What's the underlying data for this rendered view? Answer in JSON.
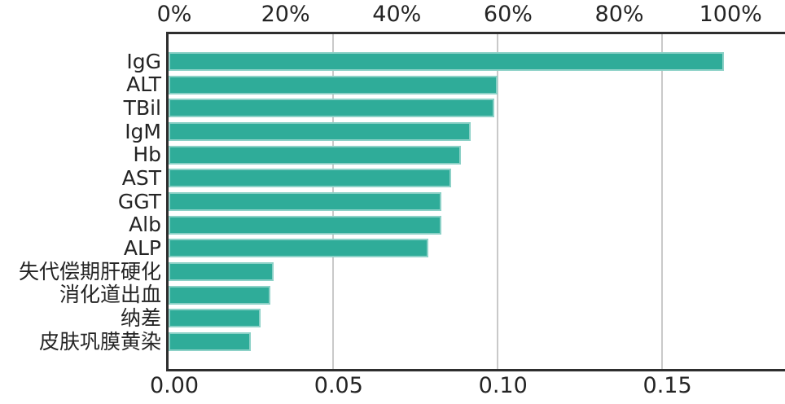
{
  "chart_data": {
    "type": "bar",
    "orientation": "horizontal",
    "categories": [
      "IgG",
      "ALT",
      "TBil",
      "IgM",
      "Hb",
      "AST",
      "GGT",
      "Alb",
      "ALP",
      "失代偿期肝硬化",
      "消化道出血",
      "纳差",
      "皮肤巩膜黄染"
    ],
    "values": [
      0.169,
      0.1,
      0.099,
      0.092,
      0.089,
      0.086,
      0.083,
      0.083,
      0.079,
      0.032,
      0.031,
      0.028,
      0.025
    ],
    "values_as_top_axis_percent": [
      100,
      59,
      58,
      54,
      53,
      51,
      49,
      49,
      47,
      19,
      18,
      17,
      15
    ],
    "top_axis": {
      "unit": "percent",
      "tick_labels": [
        "0%",
        "20%",
        "40%",
        "60%",
        "80%",
        "100%"
      ],
      "tick_values": [
        0,
        20,
        40,
        60,
        80,
        100
      ],
      "min": 0,
      "max": 110.8
    },
    "bottom_axis": {
      "unit": "proportion",
      "tick_labels": [
        "0.00",
        "0.05",
        "0.10",
        "0.15"
      ],
      "tick_values": [
        0,
        0.05,
        0.1,
        0.15
      ],
      "min": 0,
      "max": 0.1875
    },
    "grid": "vertical gridlines at bottom-axis ticks 0.05, 0.10, 0.15",
    "legend": "none",
    "bar_color": "#2fac99",
    "bar_edge_color": "rgba(255,255,255,0.45)",
    "spine_color": "#2e2e2e",
    "gridline_color": "#c9c9c9",
    "text_color": "#242424",
    "background_color": "#ffffff"
  }
}
